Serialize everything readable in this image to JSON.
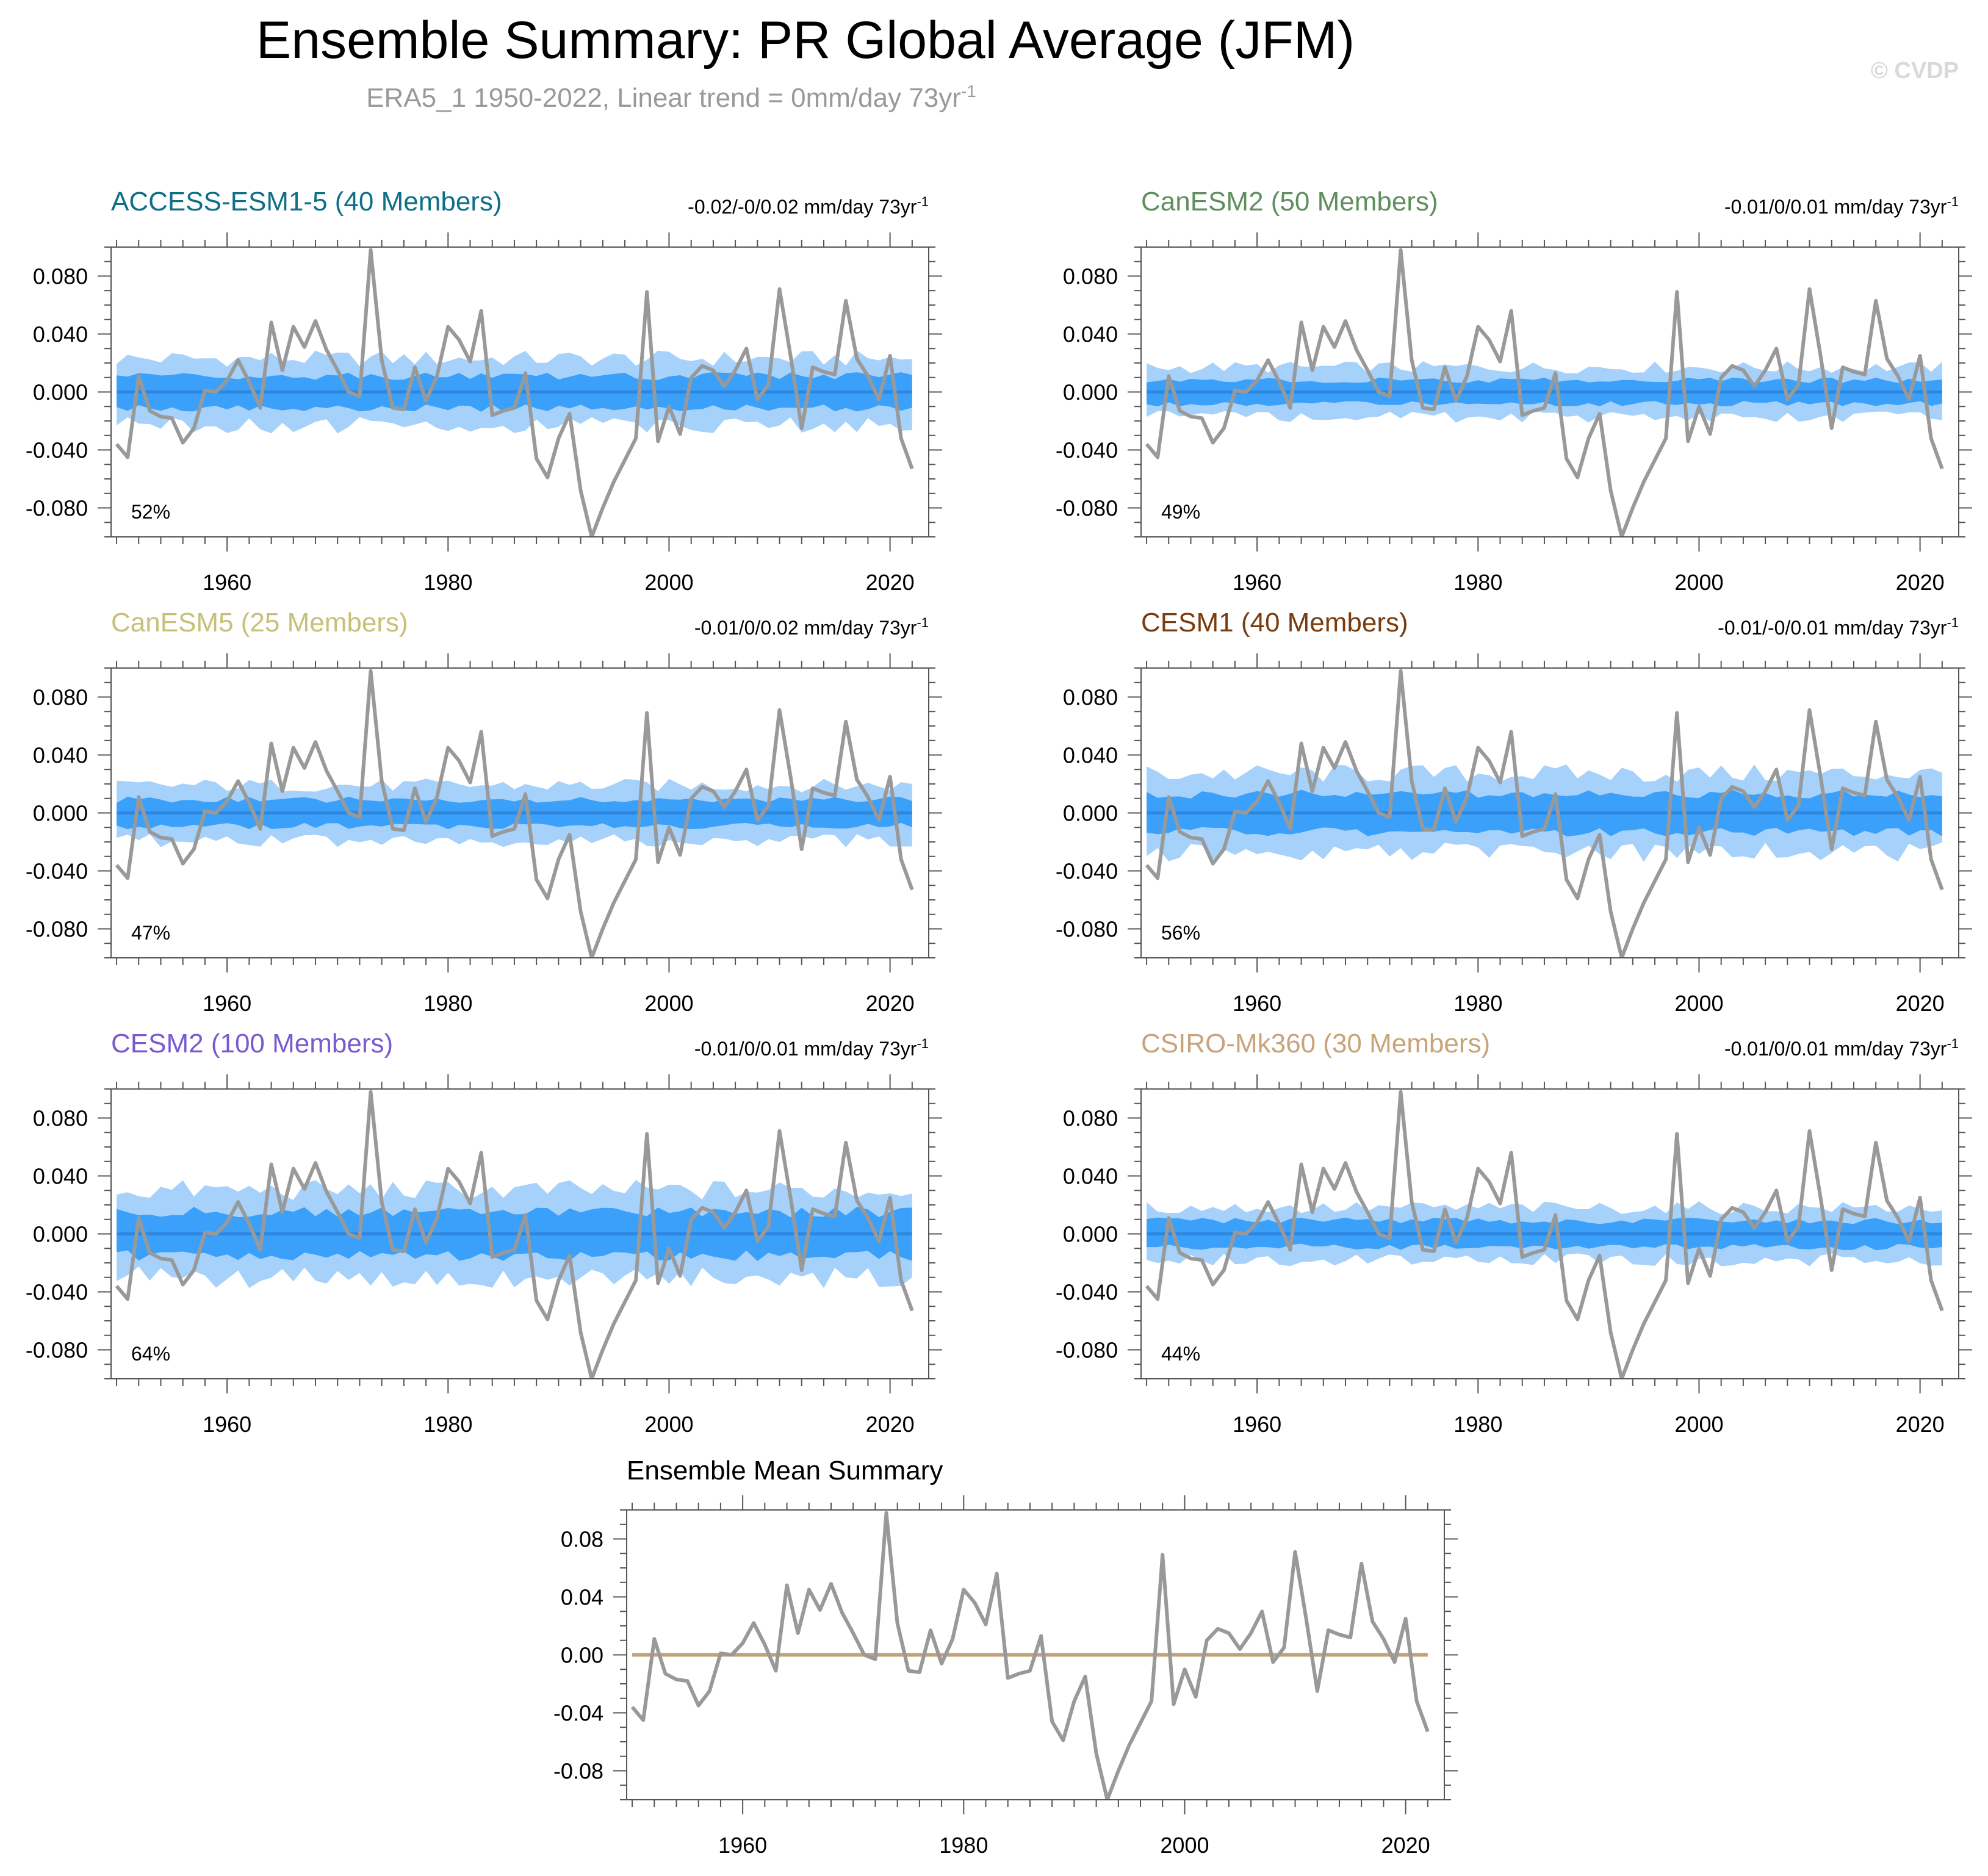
{
  "title": "Ensemble Summary: PR Global Average (JFM)",
  "subtitle_main": "ERA5_1 1950-2022, Linear trend = 0mm/day 73yr",
  "subtitle_sup": "-1",
  "watermark": "© CVDP",
  "colors": {
    "obs_line": "#999999",
    "band_outer": "#a6d1fb",
    "band_inner": "#3aa0f9",
    "ens_mean_line": "#2e86de",
    "summary_mean_line": "#bfa27a",
    "text": "#000000",
    "subtitle": "#999999",
    "watermark": "#d9d9d9"
  },
  "chart_data": [
    {
      "type": "area",
      "title": "ACCESS-ESM1-5 (40 Members)",
      "title_color": "#0f6f87",
      "trend_main": "-0.02/-0/0.02 mm/day 73yr",
      "trend_sup": "-1",
      "percent_label": "52%",
      "ylim": [
        -0.1,
        0.1
      ],
      "yticks": [
        "0.080",
        "0.040",
        "0.000",
        "-0.040",
        "-0.080"
      ],
      "xticks": [
        "1960",
        "1980",
        "2000",
        "2020"
      ],
      "spread_outer": 0.023,
      "spread_inner": 0.011
    },
    {
      "type": "area",
      "title": "CanESM2 (50 Members)",
      "title_color": "#5f8f5f",
      "trend_main": "-0.01/0/0.01 mm/day 73yr",
      "trend_sup": "-1",
      "percent_label": "49%",
      "ylim": [
        -0.1,
        0.1
      ],
      "yticks": [
        "0.080",
        "0.040",
        "0.000",
        "-0.040",
        "-0.080"
      ],
      "xticks": [
        "1960",
        "1980",
        "2000",
        "2020"
      ],
      "spread_outer": 0.017,
      "spread_inner": 0.008
    },
    {
      "type": "area",
      "title": "CanESM5 (25 Members)",
      "title_color": "#c8c078",
      "trend_main": "-0.01/0/0.02 mm/day 73yr",
      "trend_sup": "-1",
      "percent_label": "47%",
      "ylim": [
        -0.1,
        0.1
      ],
      "yticks": [
        "0.080",
        "0.040",
        "0.000",
        "-0.040",
        "-0.080"
      ],
      "xticks": [
        "1960",
        "1980",
        "2000",
        "2020"
      ],
      "spread_outer": 0.019,
      "spread_inner": 0.009
    },
    {
      "type": "area",
      "title": "CESM1 (40 Members)",
      "title_color": "#7a3c0f",
      "trend_main": "-0.01/-0/0.01 mm/day 73yr",
      "trend_sup": "-1",
      "percent_label": "56%",
      "ylim": [
        -0.1,
        0.1
      ],
      "yticks": [
        "0.080",
        "0.040",
        "0.000",
        "-0.040",
        "-0.080"
      ],
      "xticks": [
        "1960",
        "1980",
        "2000",
        "2020"
      ],
      "spread_outer": 0.027,
      "spread_inner": 0.013
    },
    {
      "type": "area",
      "title": "CESM2 (100 Members)",
      "title_color": "#7a5ad0",
      "trend_main": "-0.01/0/0.01 mm/day 73yr",
      "trend_sup": "-1",
      "percent_label": "64%",
      "ylim": [
        -0.1,
        0.1
      ],
      "yticks": [
        "0.080",
        "0.040",
        "0.000",
        "-0.040",
        "-0.080"
      ],
      "xticks": [
        "1960",
        "1980",
        "2000",
        "2020"
      ],
      "spread_outer": 0.03,
      "spread_inner": 0.015
    },
    {
      "type": "area",
      "title": "CSIRO-Mk360 (30 Members)",
      "title_color": "#c8a47a",
      "trend_main": "-0.01/0/0.01 mm/day 73yr",
      "trend_sup": "-1",
      "percent_label": "44%",
      "ylim": [
        -0.1,
        0.1
      ],
      "yticks": [
        "0.080",
        "0.040",
        "0.000",
        "-0.040",
        "-0.080"
      ],
      "xticks": [
        "1960",
        "1980",
        "2000",
        "2020"
      ],
      "spread_outer": 0.018,
      "spread_inner": 0.009
    },
    {
      "type": "line",
      "title": "Ensemble Mean Summary",
      "title_color": "#000000",
      "ylim": [
        -0.1,
        0.1
      ],
      "yticks": [
        "0.08",
        "0.04",
        "0.00",
        "-0.04",
        "-0.08"
      ],
      "xticks": [
        "1960",
        "1980",
        "2000",
        "2020"
      ]
    }
  ],
  "x_years": [
    1950,
    1951,
    1952,
    1953,
    1954,
    1955,
    1956,
    1957,
    1958,
    1959,
    1960,
    1961,
    1962,
    1963,
    1964,
    1965,
    1966,
    1967,
    1968,
    1969,
    1970,
    1971,
    1972,
    1973,
    1974,
    1975,
    1976,
    1977,
    1978,
    1979,
    1980,
    1981,
    1982,
    1983,
    1984,
    1985,
    1986,
    1987,
    1988,
    1989,
    1990,
    1991,
    1992,
    1993,
    1994,
    1995,
    1996,
    1997,
    1998,
    1999,
    2000,
    2001,
    2002,
    2003,
    2004,
    2005,
    2006,
    2007,
    2008,
    2009,
    2010,
    2011,
    2012,
    2013,
    2014,
    2015,
    2016,
    2017,
    2018,
    2019,
    2020,
    2021,
    2022
  ],
  "observed": [
    -0.036,
    -0.045,
    0.011,
    -0.013,
    -0.017,
    -0.018,
    -0.035,
    -0.025,
    0.001,
    0.0,
    0.008,
    0.022,
    0.007,
    -0.011,
    0.048,
    0.015,
    0.045,
    0.031,
    0.049,
    0.029,
    0.015,
    0.0,
    -0.003,
    0.098,
    0.022,
    -0.011,
    -0.012,
    0.017,
    -0.006,
    0.011,
    0.045,
    0.036,
    0.021,
    0.056,
    -0.016,
    -0.013,
    -0.011,
    0.013,
    -0.046,
    -0.059,
    -0.032,
    -0.015,
    -0.068,
    -0.1,
    -0.08,
    -0.062,
    -0.047,
    -0.032,
    0.069,
    -0.034,
    -0.01,
    -0.029,
    0.01,
    0.018,
    0.015,
    0.004,
    0.015,
    0.03,
    -0.005,
    0.005,
    0.071,
    0.025,
    -0.025,
    0.017,
    0.014,
    0.012,
    0.063,
    0.023,
    0.011,
    -0.005,
    0.025,
    -0.032,
    -0.053
  ]
}
